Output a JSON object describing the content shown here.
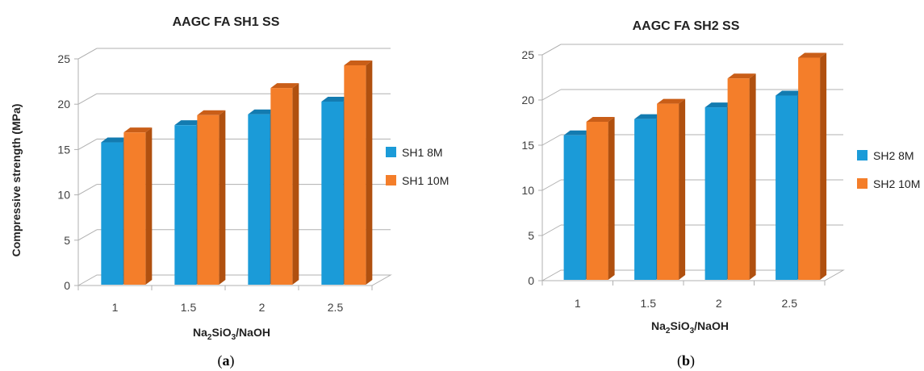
{
  "chart_data": [
    {
      "type": "bar",
      "title": "AAGC FA SH1 SS",
      "ylabel": "Compressive strength (MPa)",
      "xlabel": {
        "base1": "Na",
        "sub1": "2",
        "base2": "SiO",
        "sub2": "3",
        "base3": "/NaOH"
      },
      "categories": [
        "1",
        "1.5",
        "2",
        "2.5"
      ],
      "ylim": [
        0,
        25
      ],
      "yticks": [
        "0",
        "5",
        "10",
        "15",
        "20",
        "25"
      ],
      "series": [
        {
          "name": "SH1 8M",
          "values": [
            15.7,
            17.6,
            18.8,
            20.2
          ]
        },
        {
          "name": "SH1 10M",
          "values": [
            16.8,
            18.7,
            21.7,
            24.2
          ]
        }
      ],
      "grid": true,
      "legend": "right",
      "panel_label": {
        "open": "(",
        "letter": "a",
        "close": ")"
      }
    },
    {
      "type": "bar",
      "title": "AAGC FA SH2 SS",
      "ylabel": "",
      "xlabel": {
        "base1": "Na",
        "sub1": "2",
        "base2": "SiO",
        "sub2": "3",
        "base3": "/NaOH"
      },
      "categories": [
        "1",
        "1.5",
        "2",
        "2.5"
      ],
      "ylim": [
        0,
        25
      ],
      "yticks": [
        "0",
        "5",
        "10",
        "15",
        "20",
        "25"
      ],
      "series": [
        {
          "name": "SH2 8M",
          "values": [
            16.0,
            17.8,
            19.1,
            20.4
          ]
        },
        {
          "name": "SH2 10M",
          "values": [
            17.5,
            19.5,
            22.3,
            24.6
          ]
        }
      ],
      "grid": true,
      "legend": "right",
      "panel_label": {
        "open": "(",
        "letter": "b",
        "close": ")"
      }
    }
  ],
  "colors": {
    "series1": {
      "front": "#1b9bd8",
      "top": "#137bb0",
      "side": "#0f6a99"
    },
    "series2": {
      "front": "#f47e2a",
      "top": "#c95e18",
      "side": "#b0500f"
    },
    "grid": "#b0b0b0"
  }
}
